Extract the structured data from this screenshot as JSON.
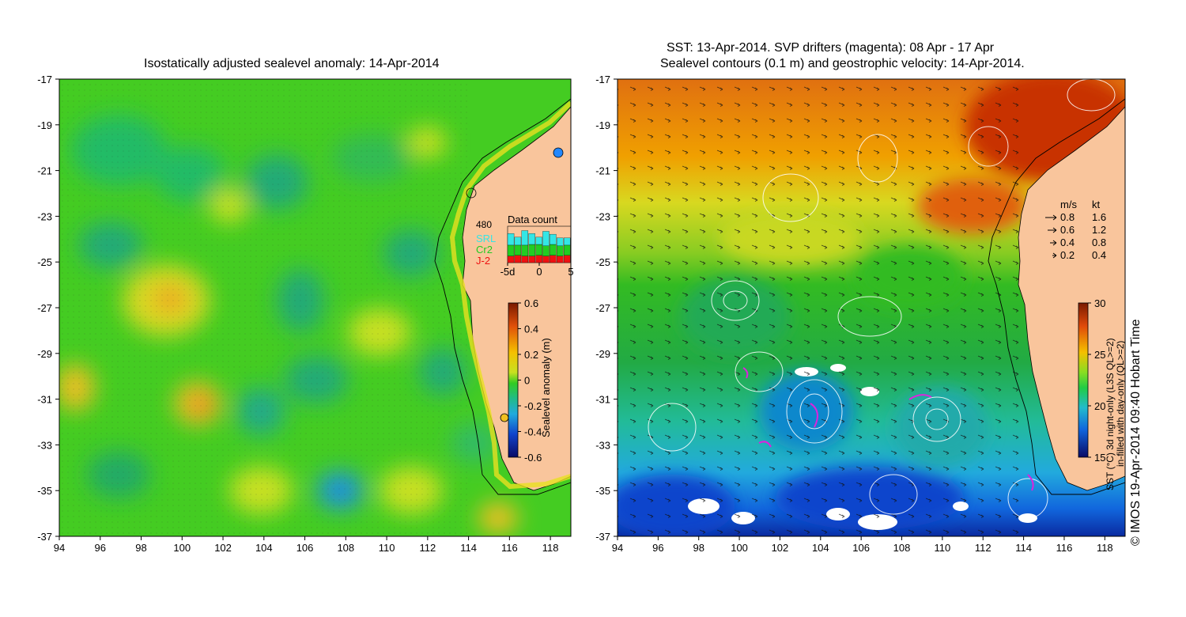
{
  "left_panel": {
    "title": "Isostatically adjusted sealevel anomaly: 14-Apr-2014",
    "x_ticks": [
      "94",
      "96",
      "98",
      "100",
      "102",
      "104",
      "106",
      "108",
      "110",
      "112",
      "114",
      "116",
      "118"
    ],
    "y_ticks": [
      "-17",
      "-19",
      "-21",
      "-23",
      "-25",
      "-27",
      "-29",
      "-31",
      "-33",
      "-35",
      "-37"
    ],
    "data_count": {
      "title": "Data count",
      "max_label": "480",
      "x_labels": [
        "-5d",
        "0",
        "5"
      ],
      "legend": [
        {
          "label": "SRL",
          "color": "#33e6e6"
        },
        {
          "label": "Cr2",
          "color": "#22cc22"
        },
        {
          "label": "J-2",
          "color": "#ee1111"
        }
      ],
      "bars": [
        {
          "j2": 0.18,
          "cr2": 0.3,
          "srl": 0.32
        },
        {
          "j2": 0.2,
          "cr2": 0.28,
          "srl": 0.22
        },
        {
          "j2": 0.18,
          "cr2": 0.3,
          "srl": 0.4
        },
        {
          "j2": 0.18,
          "cr2": 0.32,
          "srl": 0.3
        },
        {
          "j2": 0.2,
          "cr2": 0.3,
          "srl": 0.2
        },
        {
          "j2": 0.18,
          "cr2": 0.28,
          "srl": 0.4
        },
        {
          "j2": 0.2,
          "cr2": 0.3,
          "srl": 0.28
        },
        {
          "j2": 0.18,
          "cr2": 0.28,
          "srl": 0.22
        },
        {
          "j2": 0.2,
          "cr2": 0.28,
          "srl": 0.2
        }
      ]
    },
    "colorbar": {
      "label": "Sealevel anomaly (m)",
      "ticks": [
        "0.6",
        "0.4",
        "0.2",
        "0",
        "-0.2",
        "-0.4",
        "-0.6"
      ]
    }
  },
  "right_panel": {
    "title_line1": "SST: 13-Apr-2014. SVP drifters (magenta): 08 Apr - 17 Apr",
    "title_line2": "Sealevel contours (0.1 m) and geostrophic velocity: 14-Apr-2014.",
    "x_ticks": [
      "94",
      "96",
      "98",
      "100",
      "102",
      "104",
      "106",
      "108",
      "110",
      "112",
      "114",
      "116",
      "118"
    ],
    "y_ticks": [
      "-17",
      "-19",
      "-21",
      "-23",
      "-25",
      "-27",
      "-29",
      "-31",
      "-33",
      "-35",
      "-37"
    ],
    "velocity_legend": {
      "header_ms": "m/s",
      "header_kt": "kt",
      "rows": [
        {
          "ms": "0.8",
          "kt": "1.6"
        },
        {
          "ms": "0.6",
          "kt": "1.2"
        },
        {
          "ms": "0.4",
          "kt": "0.8"
        },
        {
          "ms": "0.2",
          "kt": "0.4"
        }
      ]
    },
    "colorbar": {
      "label_line1": "SST (°C) 3d night-only (L3S QL>=2)",
      "label_line2": "in-filled with day-only (QL>=2)",
      "ticks": [
        "30",
        "25",
        "20",
        "15"
      ]
    }
  },
  "copyright": "© IMOS 19-Apr-2014 09:40 Hobart Time",
  "colors": {
    "land": "#f9c59c",
    "sla_zero": "#33cc22",
    "sst_warm": "#cc3300",
    "sst_cool": "#1166dd"
  }
}
